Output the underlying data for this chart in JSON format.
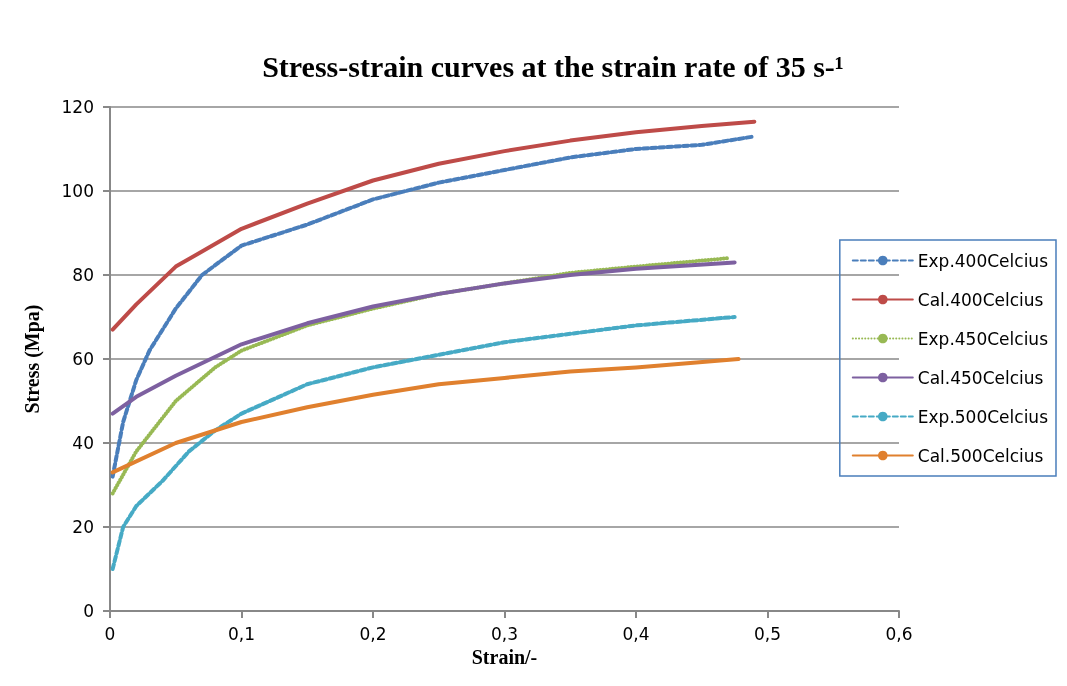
{
  "chart_data": {
    "type": "line",
    "title": "Stress-strain curves at the strain rate of 35 s-¹",
    "xlabel": "Strain/-",
    "ylabel": "Stress (Mpa)",
    "xlim": [
      0,
      0.6
    ],
    "xticks": [
      {
        "value": 0,
        "label": "0"
      },
      {
        "value": 0.1,
        "label": "0,1"
      },
      {
        "value": 0.2,
        "label": "0,2"
      },
      {
        "value": 0.3,
        "label": "0,3"
      },
      {
        "value": 0.4,
        "label": "0,4"
      },
      {
        "value": 0.5,
        "label": "0,5"
      },
      {
        "value": 0.6,
        "label": "0,6"
      }
    ],
    "ylim": [
      0,
      120
    ],
    "yticks": [
      0,
      20,
      40,
      60,
      80,
      100,
      120
    ],
    "grid": "y",
    "legend": "right",
    "marker": "none",
    "series": [
      {
        "name": "Exp.400Celcius",
        "color": "#4a7ebb",
        "line_style": "dashed",
        "x": [
          0.002,
          0.01,
          0.02,
          0.03,
          0.05,
          0.07,
          0.1,
          0.15,
          0.2,
          0.25,
          0.3,
          0.35,
          0.4,
          0.45,
          0.49
        ],
        "values": [
          32,
          45,
          55,
          62,
          72,
          80,
          87,
          92,
          98,
          102,
          105,
          108,
          110,
          111,
          113
        ]
      },
      {
        "name": "Cal.400Celcius",
        "color": "#be4b48",
        "line_style": "solid",
        "x": [
          0.002,
          0.02,
          0.05,
          0.1,
          0.15,
          0.2,
          0.25,
          0.3,
          0.35,
          0.4,
          0.45,
          0.49
        ],
        "values": [
          67,
          73,
          82,
          91,
          97,
          102.5,
          106.5,
          109.5,
          112,
          114,
          115.5,
          116.5
        ]
      },
      {
        "name": "Exp.450Celcius",
        "color": "#98b954",
        "line_style": "dotted",
        "x": [
          0.002,
          0.02,
          0.05,
          0.08,
          0.1,
          0.15,
          0.2,
          0.25,
          0.3,
          0.35,
          0.4,
          0.47
        ],
        "values": [
          28,
          38,
          50,
          58,
          62,
          68,
          72,
          75.5,
          78,
          80.5,
          82,
          84
        ]
      },
      {
        "name": "Cal.450Celcius",
        "color": "#7d60a0",
        "line_style": "solid",
        "x": [
          0.002,
          0.02,
          0.05,
          0.1,
          0.15,
          0.2,
          0.25,
          0.3,
          0.35,
          0.4,
          0.475
        ],
        "values": [
          47,
          51,
          56,
          63.5,
          68.5,
          72.5,
          75.5,
          78,
          80,
          81.5,
          83
        ]
      },
      {
        "name": "Exp.500Celcius",
        "color": "#46aac5",
        "line_style": "dashed",
        "x": [
          0.002,
          0.01,
          0.02,
          0.04,
          0.06,
          0.08,
          0.1,
          0.15,
          0.2,
          0.25,
          0.3,
          0.35,
          0.4,
          0.475
        ],
        "values": [
          10,
          20,
          25,
          31,
          38,
          43,
          47,
          54,
          58,
          61,
          64,
          66,
          68,
          70
        ]
      },
      {
        "name": "Cal.500Celcius",
        "color": "#e0802e",
        "line_style": "solid",
        "x": [
          0.002,
          0.05,
          0.1,
          0.15,
          0.2,
          0.25,
          0.3,
          0.35,
          0.4,
          0.478
        ],
        "values": [
          33,
          40,
          45,
          48.5,
          51.5,
          54,
          55.5,
          57,
          58,
          60
        ]
      }
    ]
  }
}
